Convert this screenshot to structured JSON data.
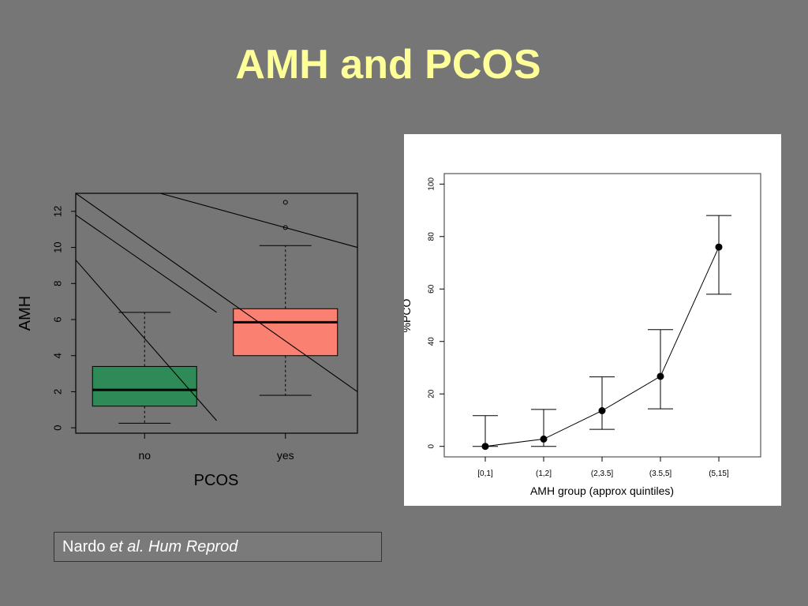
{
  "slide": {
    "title": "AMH and PCOS",
    "citation_author": "Nardo",
    "citation_etal": "et al. Hum Reprod"
  },
  "colors": {
    "background": "#767676",
    "title": "#ffff99",
    "box_no": "#2e8b57",
    "box_yes": "#fa8072"
  },
  "chart_data": [
    {
      "type": "box",
      "xlabel": "PCOS",
      "ylabel": "AMH",
      "ylim": [
        -0.3,
        13
      ],
      "yticks": [
        0,
        2,
        4,
        6,
        8,
        10,
        12
      ],
      "categories": [
        "no",
        "yes"
      ],
      "boxes": [
        {
          "name": "no",
          "whisker_low": 0.25,
          "q1": 1.2,
          "median": 2.1,
          "q3": 3.4,
          "whisker_high": 6.4,
          "outliers": []
        },
        {
          "name": "yes",
          "whisker_low": 1.8,
          "q1": 4.0,
          "median": 5.85,
          "q3": 6.6,
          "whisker_high": 10.1,
          "outliers": [
            11.1,
            12.5
          ]
        }
      ],
      "overlay_lines": [
        [
          [
            0.0,
            9.3
          ],
          [
            1.0,
            0.4
          ]
        ],
        [
          [
            0.0,
            11.8
          ],
          [
            1.0,
            6.4
          ]
        ],
        [
          [
            0.0,
            13.0
          ],
          [
            2.0,
            2.0
          ]
        ],
        [
          [
            0.6,
            13.0
          ],
          [
            2.0,
            10.0
          ]
        ]
      ]
    },
    {
      "type": "scatter",
      "xlabel": "AMH group (approx quintiles)",
      "ylabel": "%PCO",
      "categories": [
        "[0,1]",
        "(1,2]",
        "(2,3.5]",
        "(3.5,5]",
        "(5,15]"
      ],
      "values": [
        0,
        2.8,
        13.6,
        26.7,
        76
      ],
      "error_low": [
        0,
        0,
        6.5,
        14.3,
        58
      ],
      "error_high": [
        11.7,
        14.1,
        26.5,
        44.5,
        88
      ],
      "ylim": [
        -4,
        104
      ],
      "yticks": [
        0,
        20,
        40,
        60,
        80,
        100
      ]
    }
  ]
}
